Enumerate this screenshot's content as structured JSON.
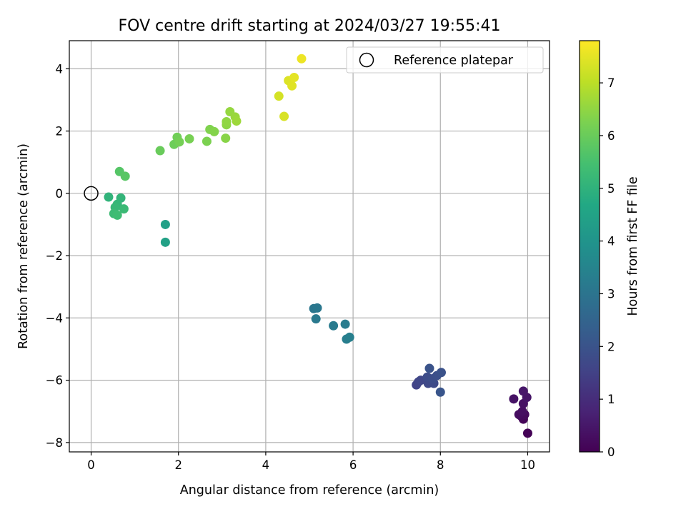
{
  "chart_data": {
    "type": "scatter",
    "title": "FOV centre drift starting at 2024/03/27 19:55:41",
    "xlabel": "Angular distance from reference (arcmin)",
    "ylabel": "Rotation from reference (arcmin)",
    "xlim": [
      -0.5,
      10.5
    ],
    "ylim": [
      -8.3,
      4.9
    ],
    "xticks": [
      0,
      2,
      4,
      6,
      8,
      10
    ],
    "yticks": [
      -8,
      -6,
      -4,
      -2,
      0,
      2,
      4
    ],
    "grid": true,
    "legend": {
      "position": "top-right",
      "entries": [
        {
          "label": "Reference platepar",
          "marker": "open-circle"
        }
      ]
    },
    "reference_point": {
      "name": "Reference platepar",
      "x": 0,
      "y": 0
    },
    "colorbar": {
      "label": "Hours from first FF file",
      "colormap": "viridis",
      "range": [
        0,
        7.8
      ],
      "ticks": [
        0,
        1,
        2,
        3,
        4,
        5,
        6,
        7
      ]
    },
    "points": [
      {
        "x": 10.0,
        "y": -7.7,
        "c": 0.05
      },
      {
        "x": 9.9,
        "y": -7.25,
        "c": 0.1
      },
      {
        "x": 9.85,
        "y": -7.15,
        "c": 0.15
      },
      {
        "x": 9.93,
        "y": -7.1,
        "c": 0.2
      },
      {
        "x": 9.8,
        "y": -7.1,
        "c": 0.25
      },
      {
        "x": 9.88,
        "y": -7.0,
        "c": 0.3
      },
      {
        "x": 9.9,
        "y": -6.75,
        "c": 0.35
      },
      {
        "x": 9.68,
        "y": -6.6,
        "c": 0.4
      },
      {
        "x": 9.98,
        "y": -6.55,
        "c": 0.45
      },
      {
        "x": 9.9,
        "y": -6.35,
        "c": 0.5
      },
      {
        "x": 7.45,
        "y": -6.15,
        "c": 1.55
      },
      {
        "x": 7.5,
        "y": -6.05,
        "c": 1.6
      },
      {
        "x": 7.55,
        "y": -6.0,
        "c": 1.65
      },
      {
        "x": 7.72,
        "y": -6.1,
        "c": 1.7
      },
      {
        "x": 7.85,
        "y": -6.1,
        "c": 1.75
      },
      {
        "x": 7.7,
        "y": -5.9,
        "c": 1.8
      },
      {
        "x": 7.82,
        "y": -5.95,
        "c": 1.85
      },
      {
        "x": 7.92,
        "y": -5.85,
        "c": 1.9
      },
      {
        "x": 8.02,
        "y": -5.75,
        "c": 1.95
      },
      {
        "x": 7.75,
        "y": -5.62,
        "c": 2.0
      },
      {
        "x": 8.0,
        "y": -6.38,
        "c": 2.05
      },
      {
        "x": 5.1,
        "y": -3.7,
        "c": 3.05
      },
      {
        "x": 5.18,
        "y": -3.68,
        "c": 3.1
      },
      {
        "x": 5.15,
        "y": -4.03,
        "c": 3.15
      },
      {
        "x": 5.55,
        "y": -4.25,
        "c": 3.2
      },
      {
        "x": 5.82,
        "y": -4.2,
        "c": 3.25
      },
      {
        "x": 5.85,
        "y": -4.68,
        "c": 3.3
      },
      {
        "x": 5.92,
        "y": -4.62,
        "c": 3.35
      },
      {
        "x": 1.7,
        "y": -1.0,
        "c": 4.4
      },
      {
        "x": 1.7,
        "y": -1.57,
        "c": 4.45
      },
      {
        "x": 0.4,
        "y": -0.12,
        "c": 5.05
      },
      {
        "x": 0.68,
        "y": -0.15,
        "c": 5.1
      },
      {
        "x": 0.6,
        "y": -0.35,
        "c": 5.15
      },
      {
        "x": 0.55,
        "y": -0.45,
        "c": 5.2
      },
      {
        "x": 0.75,
        "y": -0.5,
        "c": 5.25
      },
      {
        "x": 0.52,
        "y": -0.65,
        "c": 5.3
      },
      {
        "x": 0.6,
        "y": -0.7,
        "c": 5.35
      },
      {
        "x": 0.65,
        "y": 0.7,
        "c": 5.7
      },
      {
        "x": 0.78,
        "y": 0.55,
        "c": 5.75
      },
      {
        "x": 1.58,
        "y": 1.37,
        "c": 6.0
      },
      {
        "x": 1.9,
        "y": 1.57,
        "c": 6.05
      },
      {
        "x": 1.97,
        "y": 1.8,
        "c": 6.1
      },
      {
        "x": 2.02,
        "y": 1.65,
        "c": 6.15
      },
      {
        "x": 2.25,
        "y": 1.75,
        "c": 6.2
      },
      {
        "x": 2.65,
        "y": 1.67,
        "c": 6.25
      },
      {
        "x": 2.72,
        "y": 2.05,
        "c": 6.3
      },
      {
        "x": 2.82,
        "y": 1.98,
        "c": 6.35
      },
      {
        "x": 3.08,
        "y": 1.77,
        "c": 6.4
      },
      {
        "x": 3.1,
        "y": 2.2,
        "c": 6.45
      },
      {
        "x": 3.1,
        "y": 2.3,
        "c": 6.5
      },
      {
        "x": 3.18,
        "y": 2.62,
        "c": 6.55
      },
      {
        "x": 3.3,
        "y": 2.45,
        "c": 6.6
      },
      {
        "x": 3.33,
        "y": 2.32,
        "c": 6.65
      },
      {
        "x": 4.3,
        "y": 3.12,
        "c": 7.3
      },
      {
        "x": 4.42,
        "y": 2.47,
        "c": 7.35
      },
      {
        "x": 4.52,
        "y": 3.62,
        "c": 7.4
      },
      {
        "x": 4.6,
        "y": 3.45,
        "c": 7.45
      },
      {
        "x": 4.65,
        "y": 3.72,
        "c": 7.5
      },
      {
        "x": 4.82,
        "y": 4.32,
        "c": 7.6
      }
    ]
  }
}
